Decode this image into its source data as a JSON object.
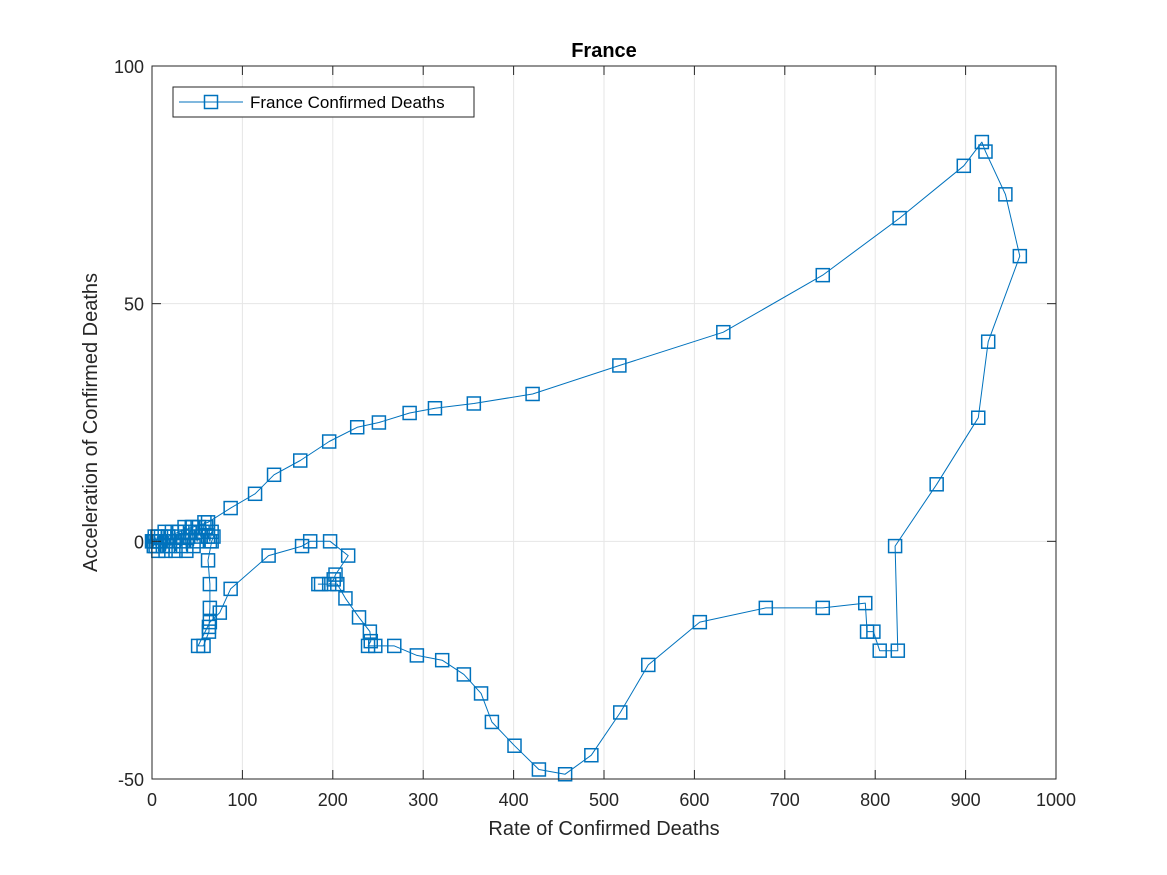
{
  "chart_data": {
    "type": "line",
    "title": "France",
    "xlabel": "Rate of Confirmed Deaths",
    "ylabel": "Acceleration of Confirmed Deaths",
    "xlim": [
      0,
      1000
    ],
    "ylim": [
      -50,
      100
    ],
    "xticks": [
      0,
      100,
      200,
      300,
      400,
      500,
      600,
      700,
      800,
      900,
      1000
    ],
    "yticks": [
      -50,
      0,
      50,
      100
    ],
    "x_tick_labels": [
      "0",
      "100",
      "200",
      "300",
      "400",
      "500",
      "600",
      "700",
      "800",
      "900",
      "1000"
    ],
    "y_tick_labels": [
      "-50",
      "0",
      "50",
      "100"
    ],
    "grid": true,
    "legend_position": "top-left",
    "series": [
      {
        "name": "France Confirmed Deaths",
        "color": "#0072BD",
        "marker": "square",
        "points": [
          [
            0,
            0
          ],
          [
            1,
            0
          ],
          [
            2,
            -1
          ],
          [
            3,
            1
          ],
          [
            5,
            0
          ],
          [
            4,
            -1
          ],
          [
            6,
            1
          ],
          [
            8,
            0
          ],
          [
            7,
            -2
          ],
          [
            10,
            1
          ],
          [
            12,
            -1
          ],
          [
            14,
            2
          ],
          [
            16,
            0
          ],
          [
            15,
            -2
          ],
          [
            18,
            1
          ],
          [
            20,
            -1
          ],
          [
            22,
            2
          ],
          [
            24,
            0
          ],
          [
            26,
            -2
          ],
          [
            28,
            1
          ],
          [
            30,
            2
          ],
          [
            32,
            -1
          ],
          [
            34,
            0
          ],
          [
            36,
            3
          ],
          [
            38,
            -2
          ],
          [
            40,
            1
          ],
          [
            42,
            2
          ],
          [
            44,
            3
          ],
          [
            46,
            -1
          ],
          [
            48,
            2
          ],
          [
            50,
            0
          ],
          [
            52,
            3
          ],
          [
            54,
            1
          ],
          [
            56,
            2
          ],
          [
            58,
            4
          ],
          [
            60,
            3
          ],
          [
            62,
            1
          ],
          [
            64,
            0
          ],
          [
            66,
            2
          ],
          [
            68,
            1
          ],
          [
            66,
            0
          ],
          [
            62,
            -4
          ],
          [
            64,
            -9
          ],
          [
            64,
            -14
          ],
          [
            63,
            -18
          ],
          [
            63,
            -19
          ],
          [
            57,
            -22
          ],
          [
            51,
            -22
          ],
          [
            64,
            -17
          ],
          [
            75,
            -15
          ],
          [
            87,
            -10
          ],
          [
            129,
            -3
          ],
          [
            166,
            -1
          ],
          [
            175,
            0
          ],
          [
            197,
            0
          ],
          [
            217,
            -3
          ],
          [
            203,
            -7
          ],
          [
            201,
            -8
          ],
          [
            196,
            -9
          ],
          [
            184,
            -9
          ],
          [
            187,
            -9
          ],
          [
            205,
            -9
          ],
          [
            214,
            -12
          ],
          [
            229,
            -16
          ],
          [
            241,
            -19
          ],
          [
            242,
            -21
          ],
          [
            239,
            -22
          ],
          [
            247,
            -22
          ],
          [
            268,
            -22
          ],
          [
            293,
            -24
          ],
          [
            321,
            -25
          ],
          [
            345,
            -28
          ],
          [
            364,
            -32
          ],
          [
            376,
            -38
          ],
          [
            401,
            -43
          ],
          [
            428,
            -48
          ],
          [
            457,
            -49
          ],
          [
            486,
            -45
          ],
          [
            518,
            -36
          ],
          [
            549,
            -26
          ],
          [
            606,
            -17
          ],
          [
            679,
            -14
          ],
          [
            742,
            -14
          ],
          [
            789,
            -13
          ],
          [
            791,
            -19
          ],
          [
            798,
            -19
          ],
          [
            805,
            -23
          ],
          [
            825,
            -23
          ],
          [
            822,
            -1
          ],
          [
            868,
            12
          ],
          [
            914,
            26
          ],
          [
            925,
            42
          ],
          [
            960,
            60
          ],
          [
            944,
            73
          ],
          [
            922,
            82
          ],
          [
            918,
            84
          ],
          [
            898,
            79
          ],
          [
            827,
            68
          ],
          [
            742,
            56
          ],
          [
            632,
            44
          ],
          [
            517,
            37
          ],
          [
            421,
            31
          ],
          [
            356,
            29
          ],
          [
            313,
            28
          ],
          [
            285,
            27
          ],
          [
            251,
            25
          ],
          [
            227,
            24
          ],
          [
            196,
            21
          ],
          [
            164,
            17
          ],
          [
            135,
            14
          ],
          [
            114,
            10
          ],
          [
            87,
            7
          ],
          [
            62,
            4
          ],
          [
            45,
            3
          ],
          [
            30,
            2
          ],
          [
            18,
            1
          ],
          [
            8,
            0
          ],
          [
            2,
            0
          ]
        ]
      }
    ]
  }
}
